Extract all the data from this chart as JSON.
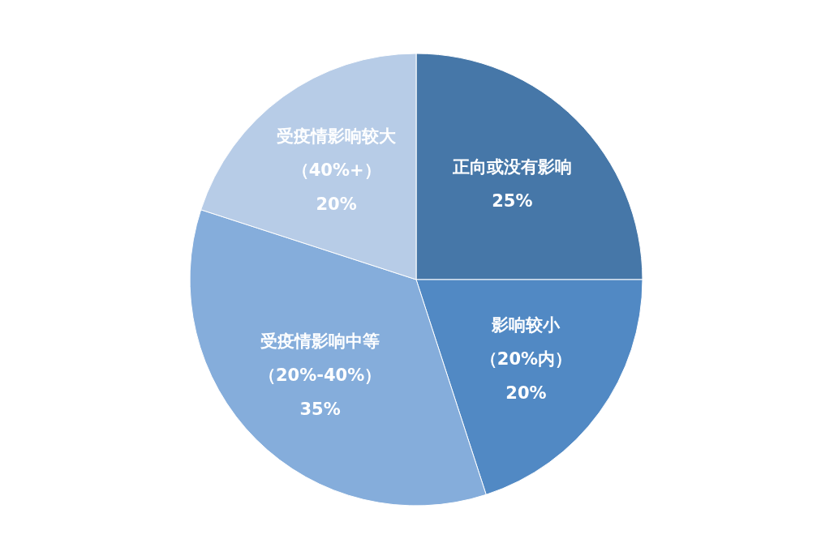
{
  "chart_data": {
    "type": "pie",
    "categories": [
      "正向或没有影响",
      "影响较小（20%内）",
      "受疫情影响中等（20%-40%）",
      "受疫情影响较大（40%+）"
    ],
    "values": [
      25,
      20,
      35,
      20
    ],
    "colors": [
      "#4677a8",
      "#5189c4",
      "#85addb",
      "#b7cce7"
    ],
    "value_labels": [
      "25%",
      "20%",
      "35%",
      "20%"
    ],
    "legend": false
  }
}
